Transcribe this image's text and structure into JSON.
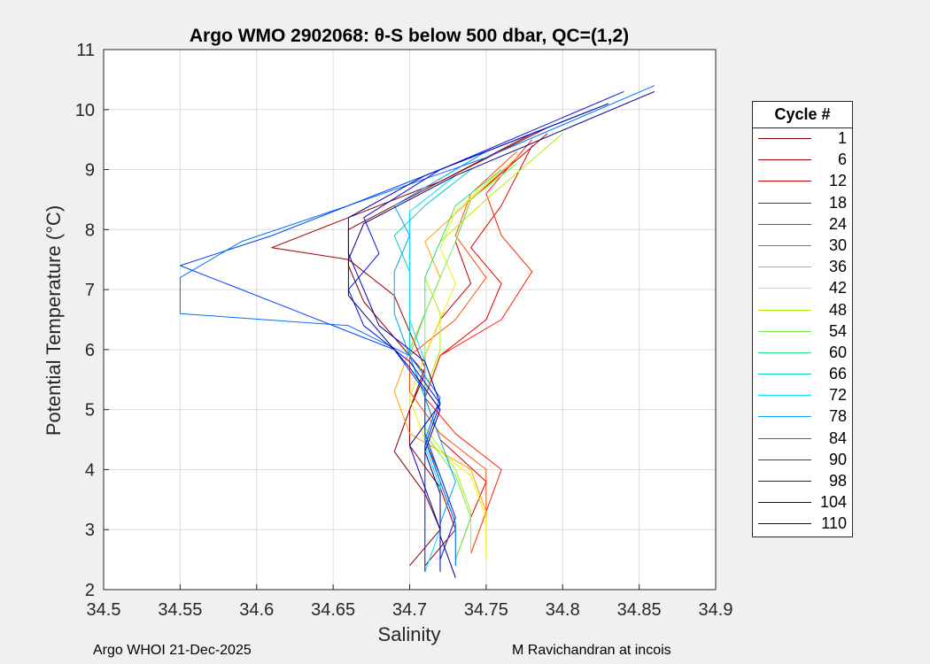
{
  "chart_data": {
    "type": "line",
    "title": "Argo WMO 2902068: θ-S below 500 dbar,  QC=(1,2)",
    "xlabel": "Salinity",
    "ylabel": "Potential Temperature (°C)",
    "xlim": [
      34.5,
      34.9
    ],
    "ylim": [
      2,
      11
    ],
    "xticks": [
      "34.5",
      "34.55",
      "34.6",
      "34.65",
      "34.7",
      "34.75",
      "34.8",
      "34.85",
      "34.9"
    ],
    "yticks": [
      "2",
      "3",
      "4",
      "5",
      "6",
      "7",
      "8",
      "9",
      "10",
      "11"
    ],
    "grid": true,
    "legend_title": "Cycle #",
    "legend_position": "right-outside",
    "series": [
      {
        "name": "1",
        "color": "#800000",
        "points": [
          [
            34.7,
            2.4
          ],
          [
            34.72,
            3.0
          ],
          [
            34.71,
            3.6
          ],
          [
            34.69,
            4.3
          ],
          [
            34.7,
            5.0
          ],
          [
            34.71,
            5.6
          ],
          [
            34.69,
            6.2
          ],
          [
            34.67,
            6.8
          ],
          [
            34.66,
            7.4
          ],
          [
            34.66,
            8.0
          ],
          [
            34.72,
            8.8
          ],
          [
            34.79,
            9.7
          ]
        ]
      },
      {
        "name": "6",
        "color": "#9a0000",
        "points": [
          [
            34.71,
            2.4
          ],
          [
            34.73,
            3.0
          ],
          [
            34.72,
            3.7
          ],
          [
            34.7,
            4.4
          ],
          [
            34.7,
            5.0
          ],
          [
            34.71,
            5.7
          ],
          [
            34.7,
            6.3
          ],
          [
            34.69,
            6.9
          ],
          [
            34.66,
            7.5
          ],
          [
            34.61,
            7.7
          ],
          [
            34.72,
            8.8
          ],
          [
            34.78,
            9.6
          ]
        ]
      },
      {
        "name": "12",
        "color": "#c00000",
        "points": [
          [
            34.72,
            2.5
          ],
          [
            34.73,
            3.2
          ],
          [
            34.72,
            3.9
          ],
          [
            34.71,
            4.5
          ],
          [
            34.71,
            5.2
          ],
          [
            34.71,
            5.9
          ],
          [
            34.72,
            6.5
          ],
          [
            34.74,
            7.1
          ],
          [
            34.73,
            7.8
          ],
          [
            34.74,
            8.5
          ],
          [
            34.79,
            9.6
          ]
        ]
      },
      {
        "name": "18",
        "color": "#e00000",
        "points": [
          [
            34.73,
            2.5
          ],
          [
            34.74,
            3.2
          ],
          [
            34.75,
            3.8
          ],
          [
            34.72,
            4.5
          ],
          [
            34.71,
            5.2
          ],
          [
            34.72,
            5.9
          ],
          [
            34.75,
            6.5
          ],
          [
            34.76,
            7.1
          ],
          [
            34.74,
            7.7
          ],
          [
            34.76,
            8.4
          ],
          [
            34.78,
            9.4
          ]
        ]
      },
      {
        "name": "24",
        "color": "#ff2000",
        "points": [
          [
            34.74,
            2.6
          ],
          [
            34.75,
            3.3
          ],
          [
            34.76,
            4.0
          ],
          [
            34.73,
            4.6
          ],
          [
            34.71,
            5.2
          ],
          [
            34.72,
            5.9
          ],
          [
            34.76,
            6.5
          ],
          [
            34.78,
            7.3
          ],
          [
            34.76,
            7.9
          ],
          [
            34.75,
            8.6
          ],
          [
            34.78,
            9.5
          ]
        ]
      },
      {
        "name": "30",
        "color": "#ff5000",
        "points": [
          [
            34.74,
            2.6
          ],
          [
            34.75,
            3.3
          ],
          [
            34.75,
            4.0
          ],
          [
            34.72,
            4.6
          ],
          [
            34.7,
            5.3
          ],
          [
            34.7,
            5.9
          ],
          [
            34.73,
            6.5
          ],
          [
            34.75,
            7.2
          ],
          [
            34.73,
            7.9
          ],
          [
            34.74,
            8.6
          ],
          [
            34.77,
            9.3
          ]
        ]
      },
      {
        "name": "36",
        "color": "#ffa000",
        "points": [
          [
            34.75,
            2.7
          ],
          [
            34.75,
            3.3
          ],
          [
            34.74,
            4.0
          ],
          [
            34.7,
            4.6
          ],
          [
            34.69,
            5.3
          ],
          [
            34.7,
            6.0
          ],
          [
            34.71,
            6.6
          ],
          [
            34.72,
            7.2
          ],
          [
            34.71,
            7.8
          ],
          [
            34.74,
            8.5
          ],
          [
            34.77,
            9.2
          ]
        ]
      },
      {
        "name": "42",
        "color": "#f0f000",
        "points": [
          [
            34.75,
            2.5
          ],
          [
            34.75,
            3.2
          ],
          [
            34.74,
            3.9
          ],
          [
            34.71,
            4.5
          ],
          [
            34.7,
            5.2
          ],
          [
            34.71,
            5.9
          ],
          [
            34.72,
            6.5
          ],
          [
            34.73,
            7.1
          ],
          [
            34.72,
            7.7
          ],
          [
            34.73,
            8.3
          ],
          [
            34.76,
            9.0
          ]
        ]
      },
      {
        "name": "48",
        "color": "#b0f000",
        "points": [
          [
            34.74,
            2.6
          ],
          [
            34.74,
            3.3
          ],
          [
            34.73,
            4.0
          ],
          [
            34.71,
            4.7
          ],
          [
            34.71,
            5.3
          ],
          [
            34.72,
            6.0
          ],
          [
            34.72,
            6.6
          ],
          [
            34.71,
            7.2
          ],
          [
            34.72,
            7.8
          ],
          [
            34.75,
            8.5
          ],
          [
            34.8,
            9.6
          ]
        ]
      },
      {
        "name": "54",
        "color": "#70f050",
        "points": [
          [
            34.73,
            2.5
          ],
          [
            34.74,
            3.2
          ],
          [
            34.73,
            3.9
          ],
          [
            34.71,
            4.6
          ],
          [
            34.71,
            5.3
          ],
          [
            34.71,
            6.0
          ],
          [
            34.71,
            6.6
          ],
          [
            34.72,
            7.2
          ],
          [
            34.73,
            7.8
          ],
          [
            34.74,
            8.5
          ],
          [
            34.77,
            9.1
          ]
        ]
      },
      {
        "name": "60",
        "color": "#30e080",
        "points": [
          [
            34.73,
            2.4
          ],
          [
            34.73,
            3.1
          ],
          [
            34.72,
            3.8
          ],
          [
            34.71,
            4.5
          ],
          [
            34.71,
            5.2
          ],
          [
            34.7,
            5.9
          ],
          [
            34.71,
            6.6
          ],
          [
            34.71,
            7.2
          ],
          [
            34.72,
            7.8
          ],
          [
            34.73,
            8.4
          ],
          [
            34.76,
            9.0
          ]
        ]
      },
      {
        "name": "66",
        "color": "#00d0c0",
        "points": [
          [
            34.72,
            2.4
          ],
          [
            34.72,
            3.1
          ],
          [
            34.72,
            3.8
          ],
          [
            34.71,
            4.5
          ],
          [
            34.71,
            5.2
          ],
          [
            34.7,
            5.9
          ],
          [
            34.7,
            6.6
          ],
          [
            34.7,
            7.3
          ],
          [
            34.69,
            7.9
          ],
          [
            34.71,
            8.4
          ],
          [
            34.74,
            9.0
          ]
        ]
      },
      {
        "name": "72",
        "color": "#00e0ff",
        "points": [
          [
            34.71,
            2.3
          ],
          [
            34.72,
            3.0
          ],
          [
            34.72,
            3.7
          ],
          [
            34.71,
            4.4
          ],
          [
            34.71,
            5.1
          ],
          [
            34.71,
            5.8
          ],
          [
            34.7,
            6.5
          ],
          [
            34.7,
            7.2
          ],
          [
            34.7,
            7.9
          ],
          [
            34.7,
            8.3
          ],
          [
            34.73,
            8.9
          ]
        ]
      },
      {
        "name": "78",
        "color": "#00a0ff",
        "points": [
          [
            34.72,
            2.4
          ],
          [
            34.72,
            3.1
          ],
          [
            34.73,
            3.8
          ],
          [
            34.72,
            4.5
          ],
          [
            34.71,
            5.2
          ],
          [
            34.7,
            5.9
          ],
          [
            34.69,
            6.6
          ],
          [
            34.69,
            7.3
          ],
          [
            34.7,
            7.9
          ],
          [
            34.69,
            8.4
          ],
          [
            34.75,
            9.3
          ]
        ]
      },
      {
        "name": "84",
        "color": "#0070ff",
        "points": [
          [
            34.73,
            2.4
          ],
          [
            34.73,
            3.1
          ],
          [
            34.72,
            3.8
          ],
          [
            34.71,
            4.5
          ],
          [
            34.72,
            5.2
          ],
          [
            34.7,
            5.9
          ],
          [
            34.66,
            6.4
          ],
          [
            34.55,
            6.6
          ],
          [
            34.55,
            7.2
          ],
          [
            34.59,
            7.8
          ],
          [
            34.66,
            8.4
          ],
          [
            34.75,
            9.2
          ],
          [
            34.86,
            10.4
          ]
        ]
      },
      {
        "name": "90",
        "color": "#0040ff",
        "points": [
          [
            34.72,
            2.5
          ],
          [
            34.73,
            3.2
          ],
          [
            34.72,
            3.9
          ],
          [
            34.71,
            4.6
          ],
          [
            34.71,
            5.3
          ],
          [
            34.69,
            6.0
          ],
          [
            34.63,
            6.6
          ],
          [
            34.55,
            7.4
          ],
          [
            34.61,
            7.9
          ],
          [
            34.7,
            8.8
          ],
          [
            34.82,
            10.0
          ]
        ]
      },
      {
        "name": "98",
        "color": "#0010e0",
        "points": [
          [
            34.71,
            2.3
          ],
          [
            34.71,
            3.0
          ],
          [
            34.71,
            3.7
          ],
          [
            34.71,
            4.4
          ],
          [
            34.72,
            5.1
          ],
          [
            34.7,
            5.8
          ],
          [
            34.67,
            6.4
          ],
          [
            34.66,
            7.0
          ],
          [
            34.68,
            7.6
          ],
          [
            34.67,
            8.2
          ],
          [
            34.72,
            9.0
          ],
          [
            34.84,
            10.3
          ]
        ]
      },
      {
        "name": "104",
        "color": "#0000b0",
        "points": [
          [
            34.72,
            2.3
          ],
          [
            34.72,
            3.0
          ],
          [
            34.71,
            3.7
          ],
          [
            34.7,
            4.4
          ],
          [
            34.72,
            5.1
          ],
          [
            34.71,
            5.8
          ],
          [
            34.68,
            6.4
          ],
          [
            34.67,
            7.0
          ],
          [
            34.66,
            7.6
          ],
          [
            34.66,
            8.2
          ],
          [
            34.71,
            8.9
          ],
          [
            34.83,
            10.1
          ]
        ]
      },
      {
        "name": "110",
        "color": "#000080",
        "points": [
          [
            34.73,
            2.2
          ],
          [
            34.72,
            2.9
          ],
          [
            34.72,
            3.6
          ],
          [
            34.71,
            4.3
          ],
          [
            34.72,
            5.0
          ],
          [
            34.7,
            5.7
          ],
          [
            34.68,
            6.3
          ],
          [
            34.66,
            6.9
          ],
          [
            34.66,
            7.5
          ],
          [
            34.67,
            8.1
          ],
          [
            34.73,
            8.9
          ],
          [
            34.86,
            10.3
          ]
        ]
      }
    ]
  },
  "footer": {
    "left": "Argo WHOI 21-Dec-2025",
    "right": "M Ravichandran at incois"
  }
}
